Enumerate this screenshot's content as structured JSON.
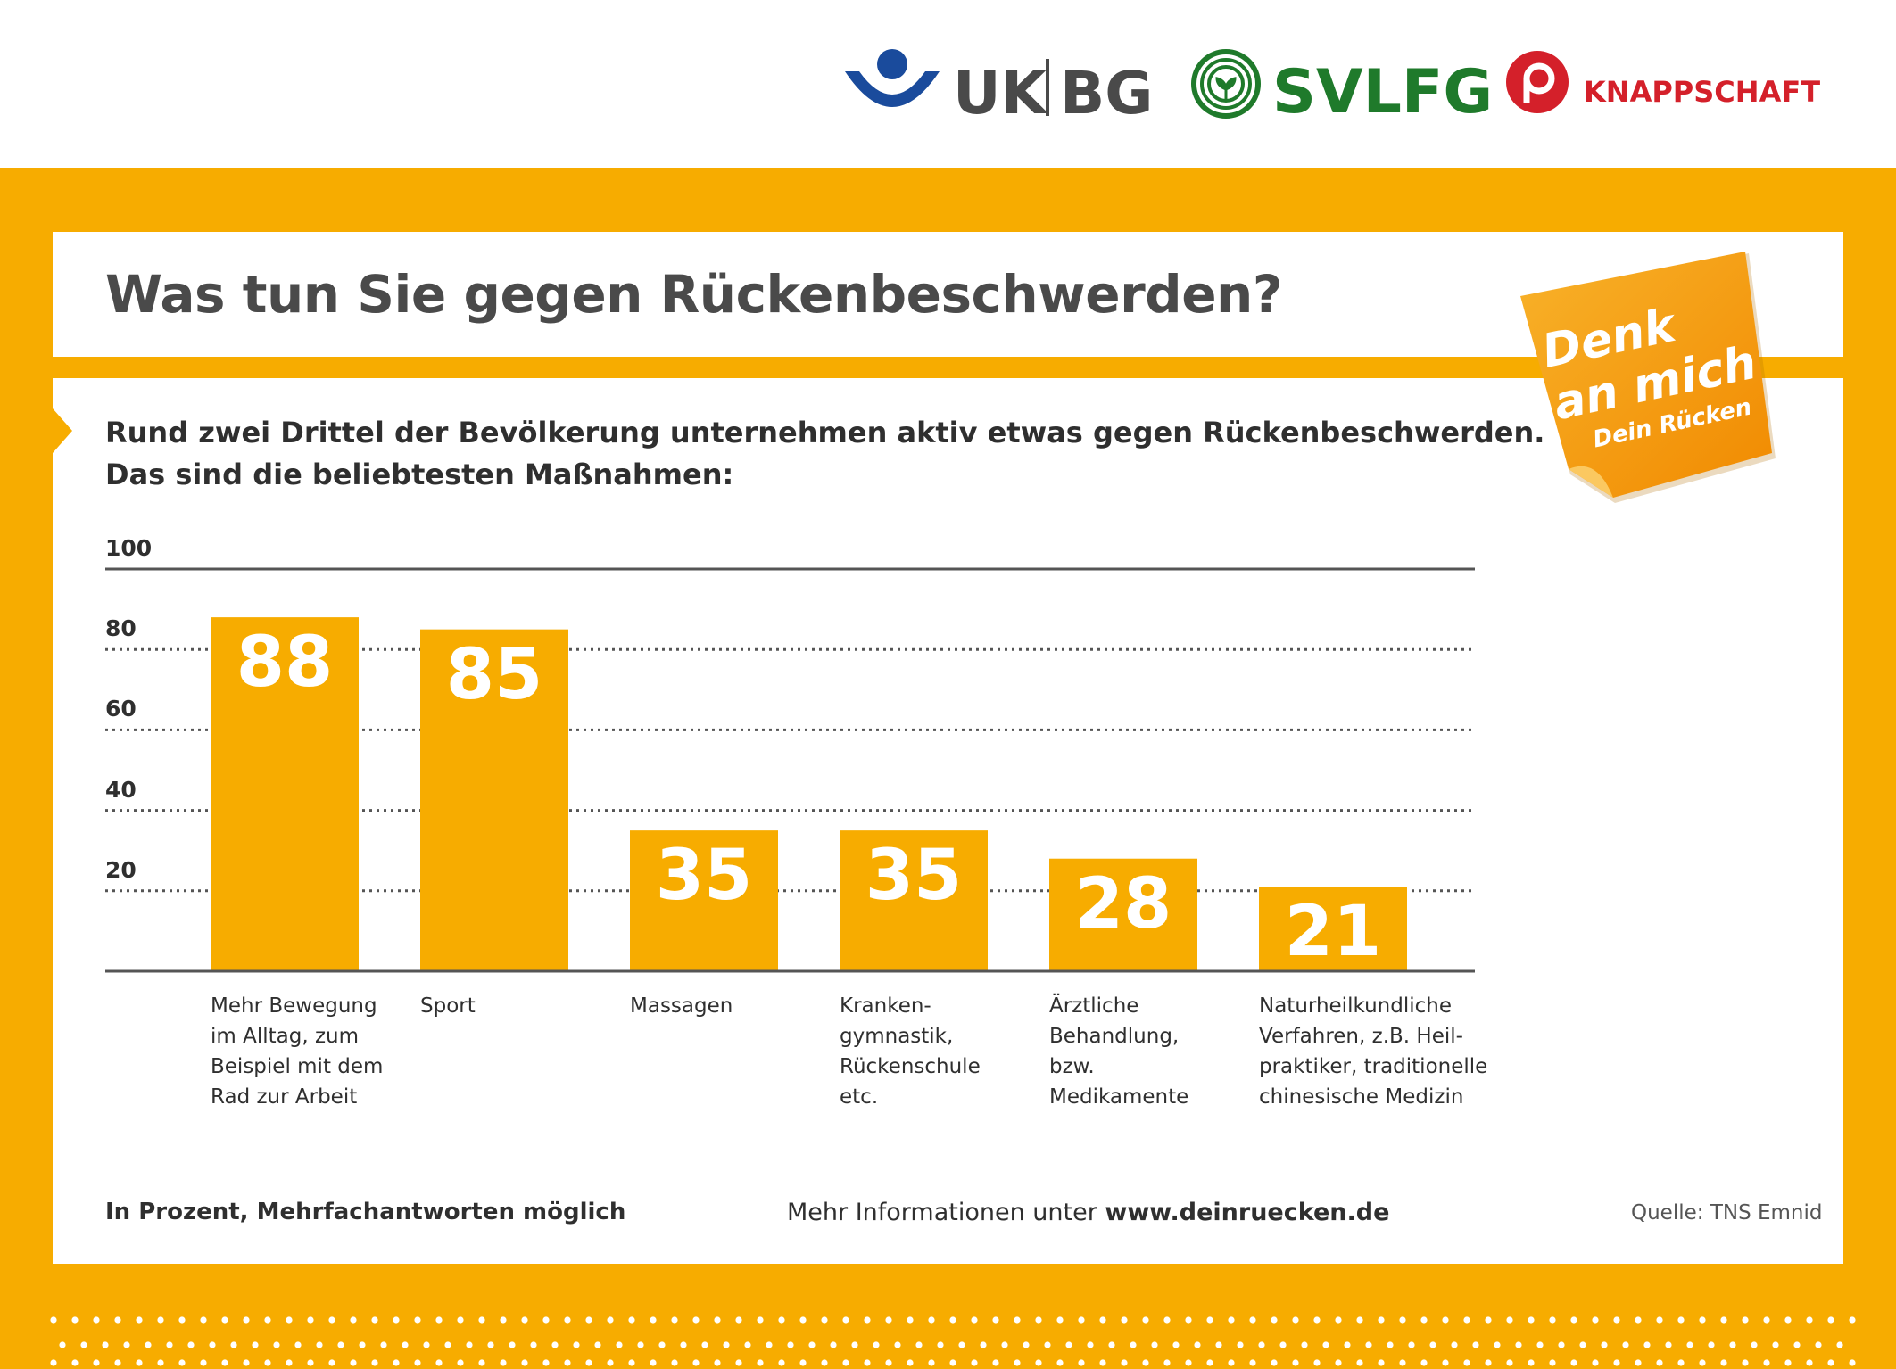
{
  "header": {
    "logos": [
      {
        "name": "UK|BG",
        "part1": "UK",
        "part2": "BG",
        "color": "#1a4b9c"
      },
      {
        "name": "SVLFG",
        "text": "SVLFG",
        "color": "#1f7a2b"
      },
      {
        "name": "KNAPPSCHAFT",
        "text": "KNAPPSCHAFT",
        "color": "#d4202a"
      }
    ]
  },
  "colors": {
    "frame": "#f7ac00",
    "bar": "#f7ac00",
    "sticky_note": "#f39a10"
  },
  "title": "Was tun Sie gegen Rückenbeschwerden?",
  "subtitle": "Rund zwei Drittel der Bevölkerung unternehmen aktiv etwas gegen Rückenbeschwerden.\nDas sind die beliebtesten Maßnahmen:",
  "sticky_note": {
    "line1": "Denk",
    "line2": "an mich",
    "line3": "Dein Rücken"
  },
  "chart_data": {
    "type": "bar",
    "categories": [
      "Mehr Bewegung\nim Alltag, zum\nBeispiel mit dem\nRad zur Arbeit",
      "Sport",
      "Massagen",
      "Kranken-\ngymnastik,\nRückenschule\netc.",
      "Ärztliche\nBehandlung,\nbzw.\nMedikamente",
      "Naturheilkundliche\nVerfahren, z.B. Heil-\npraktiker, traditionelle\nchinesische Medizin"
    ],
    "values": [
      88,
      85,
      35,
      35,
      28,
      21
    ],
    "data_labels": [
      "88",
      "85",
      "35",
      "35",
      "28",
      "21"
    ],
    "y_ticks": [
      100,
      80,
      60,
      40,
      20
    ],
    "y_tick_labels": [
      "100",
      "80",
      "60",
      "40",
      "20"
    ],
    "ylim": [
      0,
      100
    ],
    "grid": "dotted",
    "legend": "none"
  },
  "footer": {
    "note": "In Prozent, Mehrfachantworten möglich",
    "info_prefix": "Mehr Informationen unter ",
    "info_url": "www.deinruecken.de",
    "source": "Quelle: TNS Emnid"
  }
}
